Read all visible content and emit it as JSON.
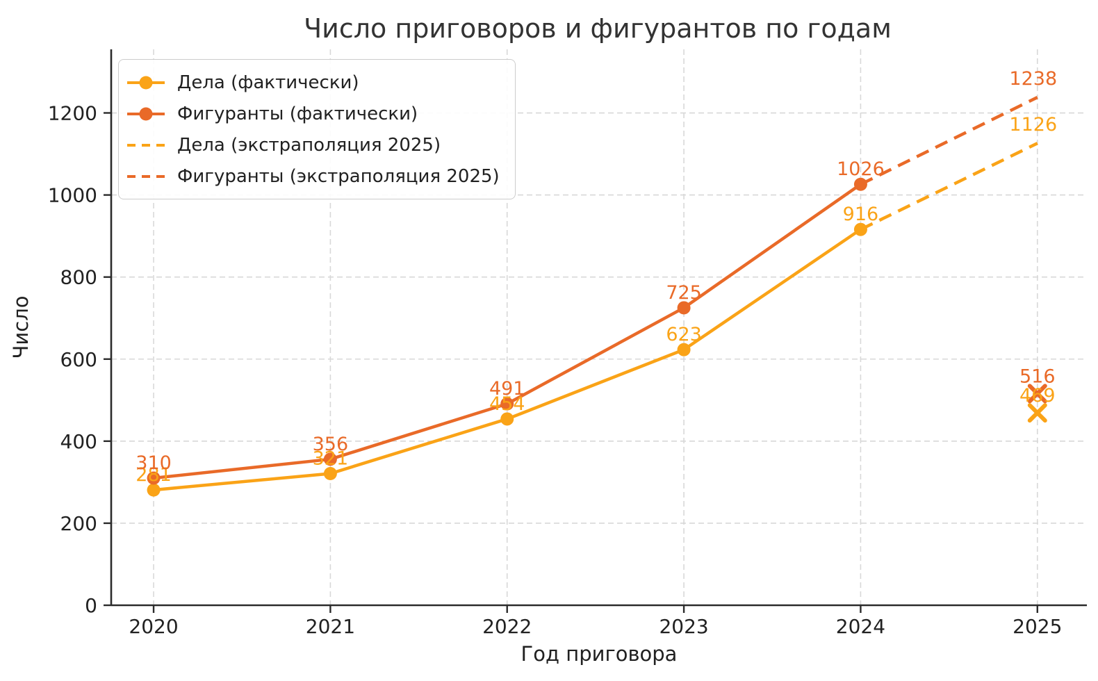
{
  "colors": {
    "cases": "#FAA317",
    "defendants": "#E96A28",
    "grid": "#D8D8D8",
    "axis": "#2B2B2B",
    "title_text": "#333333",
    "tick_text": "#212121",
    "background": "#FFFFFF"
  },
  "chart_data": {
    "type": "line",
    "title": "Число приговоров и фигурантов по годам",
    "xlabel": "Год приговора",
    "ylabel": "Число",
    "x": [
      2020,
      2021,
      2022,
      2023,
      2024
    ],
    "series": [
      {
        "name": "Дела (фактически)",
        "key": "cases",
        "style": "solid",
        "marker": "circle",
        "values": [
          281,
          321,
          454,
          623,
          916
        ]
      },
      {
        "name": "Фигуранты (фактически)",
        "key": "defendants",
        "style": "solid",
        "marker": "circle",
        "values": [
          310,
          356,
          491,
          725,
          1026
        ]
      }
    ],
    "extrapolation": [
      {
        "name": "Дела (экстраполяция 2025)",
        "key": "cases",
        "style": "dashed",
        "x": [
          2024,
          2025
        ],
        "values": [
          916,
          1126
        ],
        "end_label": "1126"
      },
      {
        "name": "Фигуранты (экстраполяция 2025)",
        "key": "defendants",
        "style": "dashed",
        "x": [
          2024,
          2025
        ],
        "values": [
          1026,
          1238
        ],
        "end_label": "1238"
      }
    ],
    "actual_2025_markers": [
      {
        "series": "Дела",
        "key": "cases",
        "x": 2025,
        "value": 469,
        "marker": "x",
        "label": "469"
      },
      {
        "series": "Фигуранты",
        "key": "defendants",
        "x": 2025,
        "value": 516,
        "marker": "x",
        "label": "516"
      }
    ],
    "xticks": [
      "2020",
      "2021",
      "2022",
      "2023",
      "2024",
      "2025"
    ],
    "xtick_values": [
      2020,
      2021,
      2022,
      2023,
      2024,
      2025
    ],
    "yticks": [
      0,
      200,
      400,
      600,
      800,
      1000,
      1200
    ],
    "xlim": [
      2019.76,
      2025.28
    ],
    "ylim": [
      0,
      1355
    ],
    "grid": true,
    "legend_position": "upper left"
  },
  "legend": {
    "items": [
      {
        "label": "Дела (фактически)",
        "key": "cases",
        "style": "solid"
      },
      {
        "label": "Фигуранты (фактически)",
        "key": "defendants",
        "style": "solid"
      },
      {
        "label": "Дела (экстраполяция 2025)",
        "key": "cases",
        "style": "dashed"
      },
      {
        "label": "Фигуранты (экстраполяция 2025)",
        "key": "defendants",
        "style": "dashed"
      }
    ]
  }
}
